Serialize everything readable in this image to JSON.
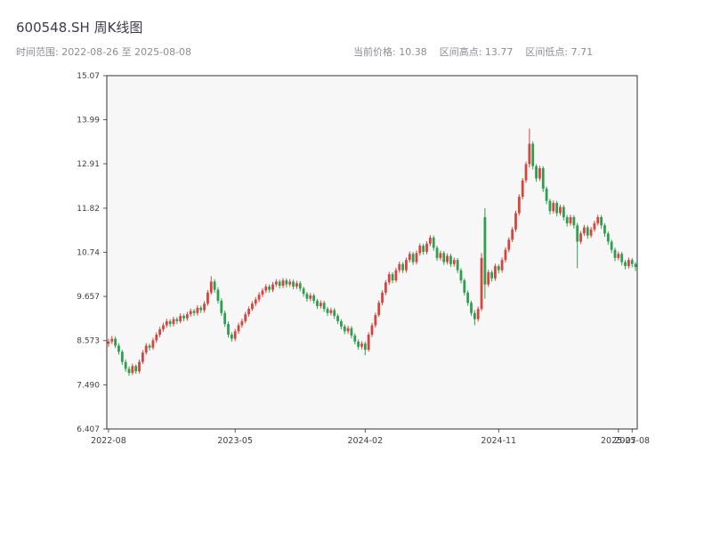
{
  "header": {
    "title": "600548.SH 周K线图",
    "time_range_label": "时间范围: 2022-08-26 至 2025-08-08",
    "stat_current": "当前价格: 10.38",
    "stat_high": "区间高点: 13.77",
    "stat_low": "区间低点: 7.71"
  },
  "chart_data": {
    "type": "candlestick",
    "title": "600548.SH 周K线图",
    "symbol": "600548.SH",
    "interval": "weekly",
    "start_date": "2022-08-26",
    "end_date": "2025-08-08",
    "current_price": 10.38,
    "period_high": 13.77,
    "period_low": 7.71,
    "grid": false,
    "legend": "none",
    "ylim": [
      6.407,
      15.07
    ],
    "yticks": [
      6.407,
      7.49,
      8.573,
      9.657,
      10.74,
      11.82,
      12.91,
      13.99,
      15.07
    ],
    "ytick_labels": [
      "6.407",
      "7.490",
      "8.573",
      "9.657",
      "10.74",
      "11.82",
      "12.91",
      "13.99",
      "15.07"
    ],
    "xticks": [
      {
        "i": 0,
        "label": "2022-08"
      },
      {
        "i": 37,
        "label": "2023-05"
      },
      {
        "i": 75,
        "label": "2024-02"
      },
      {
        "i": 114,
        "label": "2024-11"
      },
      {
        "i": 149,
        "label": "2025-07"
      },
      {
        "i": 153,
        "label": "2025-08"
      }
    ],
    "colors": {
      "up": "#d6453d",
      "down": "#2e9e4f",
      "plot_bg": "#f7f7f8",
      "spine": "#33333a",
      "tick_text": "#3c3c44"
    },
    "candles": [
      [
        8.5,
        8.62,
        8.42,
        8.55
      ],
      [
        8.55,
        8.69,
        8.49,
        8.62
      ],
      [
        8.62,
        8.67,
        8.39,
        8.45
      ],
      [
        8.45,
        8.51,
        8.23,
        8.3
      ],
      [
        8.3,
        8.35,
        7.98,
        8.05
      ],
      [
        8.05,
        8.11,
        7.81,
        7.88
      ],
      [
        7.88,
        7.94,
        7.71,
        7.78
      ],
      [
        7.78,
        8.01,
        7.73,
        7.95
      ],
      [
        7.95,
        7.99,
        7.76,
        7.82
      ],
      [
        7.82,
        8.11,
        7.77,
        8.05
      ],
      [
        8.05,
        8.34,
        8.0,
        8.28
      ],
      [
        8.28,
        8.51,
        8.23,
        8.45
      ],
      [
        8.45,
        8.5,
        8.33,
        8.4
      ],
      [
        8.4,
        8.64,
        8.35,
        8.58
      ],
      [
        8.58,
        8.78,
        8.52,
        8.72
      ],
      [
        8.72,
        8.91,
        8.66,
        8.85
      ],
      [
        8.85,
        9.01,
        8.79,
        8.95
      ],
      [
        8.95,
        9.11,
        8.89,
        9.05
      ],
      [
        9.05,
        9.1,
        8.91,
        8.98
      ],
      [
        8.98,
        9.16,
        8.92,
        9.1
      ],
      [
        9.1,
        9.15,
        8.98,
        9.05
      ],
      [
        9.05,
        9.24,
        9.0,
        9.18
      ],
      [
        9.18,
        9.23,
        9.05,
        9.12
      ],
      [
        9.12,
        9.28,
        9.06,
        9.22
      ],
      [
        9.22,
        9.36,
        9.16,
        9.3
      ],
      [
        9.3,
        9.35,
        9.18,
        9.25
      ],
      [
        9.25,
        9.44,
        9.19,
        9.38
      ],
      [
        9.38,
        9.43,
        9.25,
        9.32
      ],
      [
        9.32,
        9.54,
        9.26,
        9.48
      ],
      [
        9.48,
        9.81,
        9.43,
        9.75
      ],
      [
        9.75,
        10.15,
        9.7,
        10.02
      ],
      [
        10.02,
        10.08,
        9.75,
        9.82
      ],
      [
        9.82,
        9.88,
        9.48,
        9.55
      ],
      [
        9.55,
        9.61,
        9.18,
        9.25
      ],
      [
        9.25,
        9.31,
        8.91,
        8.98
      ],
      [
        8.98,
        9.04,
        8.65,
        8.72
      ],
      [
        8.72,
        8.78,
        8.55,
        8.62
      ],
      [
        8.62,
        8.86,
        8.56,
        8.8
      ],
      [
        8.8,
        9.01,
        8.74,
        8.95
      ],
      [
        8.95,
        9.11,
        8.89,
        9.05
      ],
      [
        9.05,
        9.28,
        9.0,
        9.22
      ],
      [
        9.22,
        9.41,
        9.16,
        9.35
      ],
      [
        9.35,
        9.54,
        9.3,
        9.48
      ],
      [
        9.48,
        9.64,
        9.42,
        9.58
      ],
      [
        9.58,
        9.76,
        9.52,
        9.7
      ],
      [
        9.7,
        9.86,
        9.64,
        9.8
      ],
      [
        9.8,
        9.96,
        9.74,
        9.9
      ],
      [
        9.9,
        9.95,
        9.75,
        9.82
      ],
      [
        9.82,
        10.01,
        9.76,
        9.95
      ],
      [
        9.95,
        10.08,
        9.89,
        10.02
      ],
      [
        10.02,
        10.07,
        9.85,
        9.92
      ],
      [
        9.92,
        10.11,
        9.86,
        10.05
      ],
      [
        10.05,
        10.1,
        9.88,
        9.95
      ],
      [
        9.95,
        10.08,
        9.89,
        10.02
      ],
      [
        10.02,
        10.07,
        9.83,
        9.9
      ],
      [
        9.9,
        10.04,
        9.84,
        9.98
      ],
      [
        9.98,
        10.03,
        9.78,
        9.85
      ],
      [
        9.85,
        9.9,
        9.65,
        9.72
      ],
      [
        9.72,
        9.77,
        9.53,
        9.6
      ],
      [
        9.6,
        9.74,
        9.54,
        9.68
      ],
      [
        9.68,
        9.73,
        9.48,
        9.55
      ],
      [
        9.55,
        9.6,
        9.35,
        9.42
      ],
      [
        9.42,
        9.56,
        9.36,
        9.5
      ],
      [
        9.5,
        9.55,
        9.28,
        9.35
      ],
      [
        9.35,
        9.4,
        9.18,
        9.25
      ],
      [
        9.25,
        9.38,
        9.19,
        9.32
      ],
      [
        9.32,
        9.37,
        9.11,
        9.18
      ],
      [
        9.18,
        9.23,
        8.98,
        9.05
      ],
      [
        9.05,
        9.1,
        8.85,
        8.92
      ],
      [
        8.92,
        8.97,
        8.73,
        8.8
      ],
      [
        8.8,
        8.94,
        8.74,
        8.88
      ],
      [
        8.88,
        8.93,
        8.63,
        8.7
      ],
      [
        8.7,
        8.75,
        8.48,
        8.55
      ],
      [
        8.55,
        8.6,
        8.35,
        8.42
      ],
      [
        8.42,
        8.56,
        8.36,
        8.5
      ],
      [
        8.5,
        8.55,
        8.22,
        8.35
      ],
      [
        8.35,
        8.78,
        8.3,
        8.72
      ],
      [
        8.72,
        9.01,
        8.66,
        8.95
      ],
      [
        8.95,
        9.26,
        8.89,
        9.2
      ],
      [
        9.2,
        9.56,
        9.15,
        9.5
      ],
      [
        9.5,
        9.81,
        9.44,
        9.75
      ],
      [
        9.75,
        10.06,
        9.69,
        10.0
      ],
      [
        10.0,
        10.26,
        9.94,
        10.2
      ],
      [
        10.2,
        10.25,
        9.98,
        10.05
      ],
      [
        10.05,
        10.36,
        10.0,
        10.3
      ],
      [
        10.3,
        10.51,
        10.24,
        10.45
      ],
      [
        10.45,
        10.5,
        10.23,
        10.3
      ],
      [
        10.3,
        10.61,
        10.24,
        10.55
      ],
      [
        10.55,
        10.76,
        10.49,
        10.7
      ],
      [
        10.7,
        10.75,
        10.43,
        10.5
      ],
      [
        10.5,
        10.78,
        10.44,
        10.72
      ],
      [
        10.72,
        10.96,
        10.66,
        10.9
      ],
      [
        10.9,
        10.95,
        10.68,
        10.75
      ],
      [
        10.75,
        11.01,
        10.69,
        10.95
      ],
      [
        10.95,
        11.16,
        10.89,
        11.1
      ],
      [
        11.1,
        11.15,
        10.78,
        10.85
      ],
      [
        10.85,
        10.9,
        10.53,
        10.6
      ],
      [
        10.6,
        10.78,
        10.54,
        10.72
      ],
      [
        10.72,
        10.77,
        10.43,
        10.5
      ],
      [
        10.5,
        10.71,
        10.44,
        10.65
      ],
      [
        10.65,
        10.7,
        10.38,
        10.45
      ],
      [
        10.45,
        10.61,
        10.39,
        10.55
      ],
      [
        10.55,
        10.6,
        10.23,
        10.3
      ],
      [
        10.3,
        10.35,
        9.98,
        10.05
      ],
      [
        10.05,
        10.1,
        9.68,
        9.75
      ],
      [
        9.75,
        9.8,
        9.43,
        9.5
      ],
      [
        9.5,
        9.55,
        9.18,
        9.25
      ],
      [
        9.25,
        9.32,
        8.95,
        9.1
      ],
      [
        9.1,
        9.41,
        9.04,
        9.35
      ],
      [
        9.35,
        10.72,
        9.3,
        10.6
      ],
      [
        11.6,
        11.82,
        9.6,
        9.95
      ],
      [
        9.95,
        10.31,
        9.89,
        10.25
      ],
      [
        10.25,
        10.3,
        10.02,
        10.1
      ],
      [
        10.1,
        10.46,
        10.04,
        10.4
      ],
      [
        10.4,
        10.45,
        10.22,
        10.3
      ],
      [
        10.3,
        10.61,
        10.24,
        10.55
      ],
      [
        10.55,
        10.86,
        10.49,
        10.8
      ],
      [
        10.8,
        11.11,
        10.74,
        11.05
      ],
      [
        11.05,
        11.36,
        10.99,
        11.3
      ],
      [
        11.3,
        11.76,
        11.24,
        11.7
      ],
      [
        11.7,
        12.16,
        11.64,
        12.1
      ],
      [
        12.1,
        12.56,
        12.04,
        12.5
      ],
      [
        12.5,
        12.96,
        12.44,
        12.9
      ],
      [
        12.9,
        13.77,
        12.82,
        13.4
      ],
      [
        13.4,
        13.46,
        12.77,
        12.85
      ],
      [
        12.85,
        12.9,
        12.47,
        12.55
      ],
      [
        12.55,
        12.86,
        12.49,
        12.8
      ],
      [
        12.8,
        12.85,
        12.22,
        12.3
      ],
      [
        12.3,
        12.35,
        11.92,
        12.0
      ],
      [
        12.0,
        12.05,
        11.67,
        11.75
      ],
      [
        11.75,
        12.01,
        11.69,
        11.95
      ],
      [
        11.95,
        12.0,
        11.62,
        11.7
      ],
      [
        11.7,
        11.91,
        11.64,
        11.85
      ],
      [
        11.85,
        11.9,
        11.52,
        11.6
      ],
      [
        11.6,
        11.65,
        11.37,
        11.45
      ],
      [
        11.45,
        11.66,
        11.39,
        11.6
      ],
      [
        11.6,
        11.65,
        11.32,
        11.4
      ],
      [
        11.4,
        11.46,
        10.35,
        11.0
      ],
      [
        11.0,
        11.26,
        10.94,
        11.2
      ],
      [
        11.2,
        11.41,
        11.14,
        11.35
      ],
      [
        11.35,
        11.4,
        11.07,
        11.15
      ],
      [
        11.15,
        11.36,
        11.09,
        11.3
      ],
      [
        11.3,
        11.51,
        11.24,
        11.45
      ],
      [
        11.45,
        11.66,
        11.39,
        11.6
      ],
      [
        11.6,
        11.65,
        11.32,
        11.4
      ],
      [
        11.4,
        11.45,
        11.12,
        11.2
      ],
      [
        11.2,
        11.25,
        10.92,
        11.0
      ],
      [
        11.0,
        11.05,
        10.72,
        10.8
      ],
      [
        10.8,
        10.85,
        10.52,
        10.6
      ],
      [
        10.6,
        10.76,
        10.54,
        10.7
      ],
      [
        10.7,
        10.75,
        10.42,
        10.5
      ],
      [
        10.5,
        10.55,
        10.32,
        10.4
      ],
      [
        10.4,
        10.61,
        10.34,
        10.55
      ],
      [
        10.55,
        10.6,
        10.37,
        10.45
      ],
      [
        10.45,
        10.5,
        10.28,
        10.38
      ]
    ]
  }
}
